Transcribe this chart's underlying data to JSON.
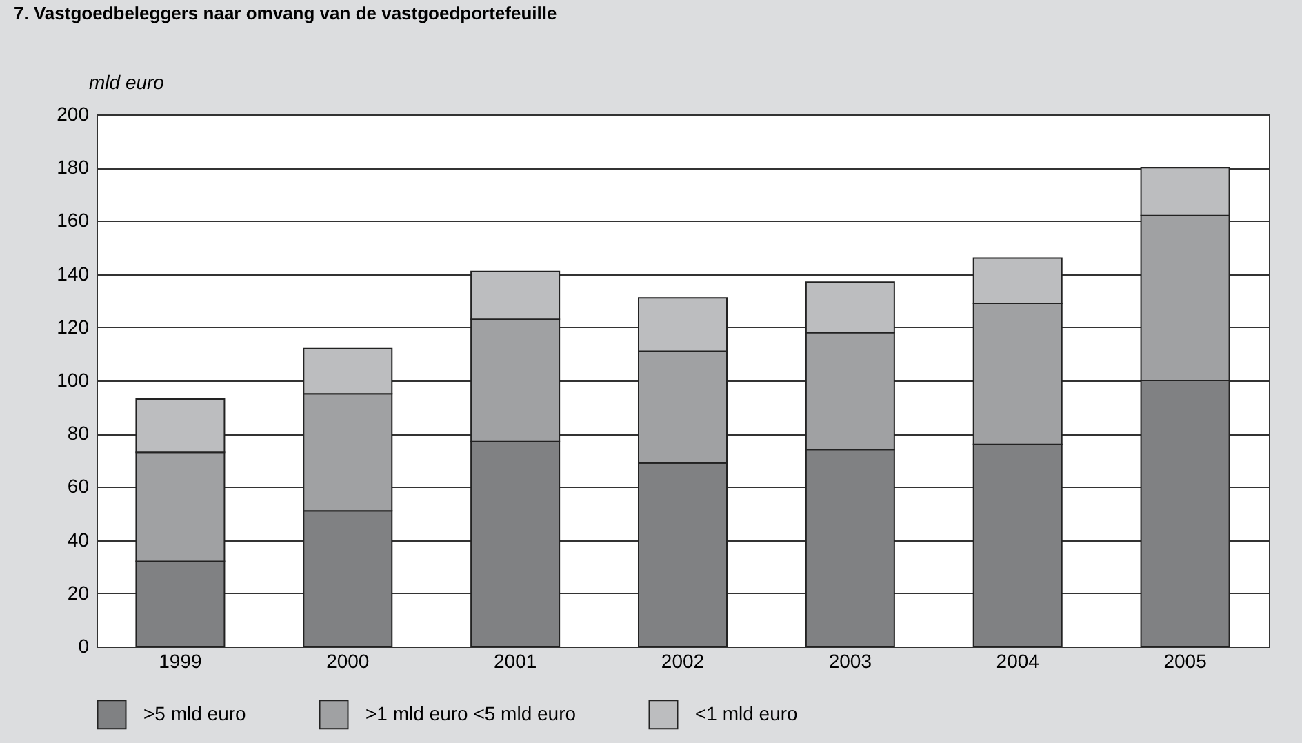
{
  "chart_data": {
    "type": "bar",
    "title": "7. Vastgoedbeleggers naar omvang van de vastgoedportefeuille",
    "ylabel": "mld euro",
    "categories": [
      "1999",
      "2000",
      "2001",
      "2002",
      "2003",
      "2004",
      "2005"
    ],
    "stacked": true,
    "series": [
      {
        "name": ">5 mld euro",
        "color": "#808183",
        "values": [
          32,
          51,
          77,
          69,
          74,
          76,
          100
        ]
      },
      {
        "name": ">1 mld euro <5 mld euro",
        "color": "#a0a1a3",
        "values": [
          41,
          44,
          46,
          42,
          44,
          53,
          62
        ]
      },
      {
        "name": "<1 mld euro",
        "color": "#bcbdbf",
        "values": [
          20,
          17,
          18,
          20,
          19,
          17,
          18
        ]
      }
    ],
    "ylim": [
      0,
      200
    ],
    "yticks": [
      0,
      20,
      40,
      60,
      80,
      100,
      120,
      140,
      160,
      180,
      200
    ],
    "grid": "y",
    "legend": "bottom"
  }
}
